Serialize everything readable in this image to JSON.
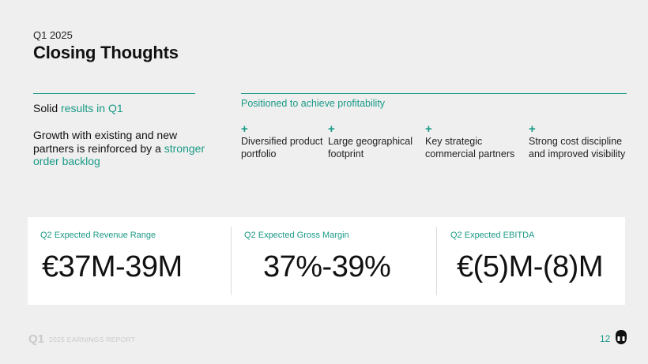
{
  "header": {
    "kicker": "Q1 2025",
    "title": "Closing Thoughts"
  },
  "left": {
    "solid_prefix": "Solid ",
    "solid_accent": "results in Q1",
    "growth_prefix": "Growth with existing and new partners is reinforced by a ",
    "growth_accent": "stronger order backlog"
  },
  "right": {
    "title": "Positioned to achieve profitability",
    "plus_symbol": "+",
    "pillars": [
      {
        "text": "Diversified product portfolio"
      },
      {
        "text": "Large geographical footprint"
      },
      {
        "text": "Key strategic commercial partners"
      },
      {
        "text": "Strong cost discipline and improved visibility"
      }
    ]
  },
  "metrics": [
    {
      "label": "Q2 Expected Revenue Range",
      "value": "€37M-39M"
    },
    {
      "label": "Q2 Expected Gross Margin",
      "value": "37%-39%"
    },
    {
      "label": "Q2 Expected EBITDA",
      "value": "€(5)M-(8)M"
    }
  ],
  "footer": {
    "q1": "Q1",
    "report": "2025 EARNINGS REPORT",
    "page": "12"
  },
  "colors": {
    "accent": "#1a9a86",
    "background": "#efefef",
    "panel": "#ffffff",
    "footer_gray": "#c8caca"
  }
}
